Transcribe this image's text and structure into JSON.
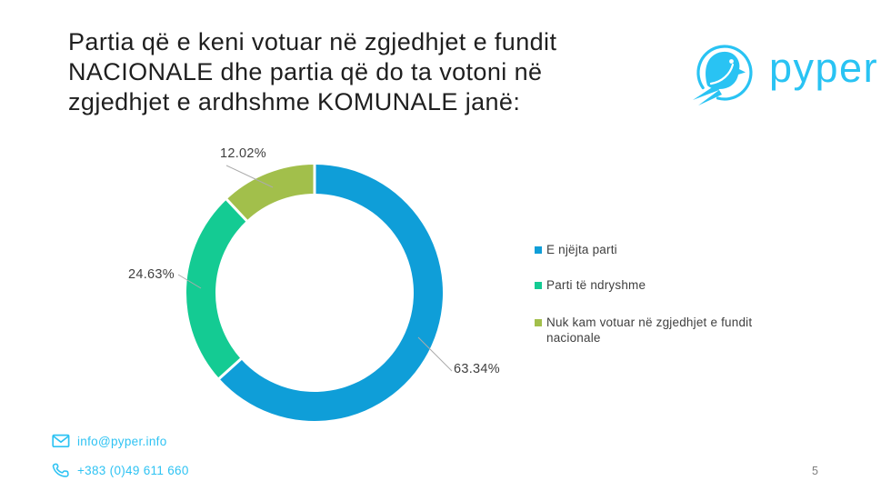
{
  "slide": {
    "title_lines": [
      "Partia që e keni votuar në zgjedhjet e fundit",
      "NACIONALE dhe partia që do ta votoni në",
      "zgjedhjet e ardhshme KOMUNALE janë:"
    ],
    "page_number": "5"
  },
  "logo": {
    "name": "pyper",
    "color": "#29c3f3"
  },
  "footer": {
    "email": "info@pyper.info",
    "phone": "+383 (0)49 611 660"
  },
  "chart_data": {
    "type": "pie",
    "subtype": "donut",
    "categories": [
      "E njëjta parti",
      "Parti të ndryshme",
      "Nuk kam votuar në zgjedhjet e fundit nacionale"
    ],
    "values": [
      63.34,
      24.63,
      12.02
    ],
    "point_labels": [
      "63.34%",
      "24.63%",
      "12.02%"
    ],
    "colors": [
      "#0f9ed8",
      "#14cb93",
      "#a2bf4b"
    ],
    "start_angle_deg": 0,
    "direction": "clockwise",
    "inner_radius_ratio": 0.77,
    "separator_color": "#ffffff",
    "leader_line_color": "#ababab",
    "legend_position": "right"
  }
}
